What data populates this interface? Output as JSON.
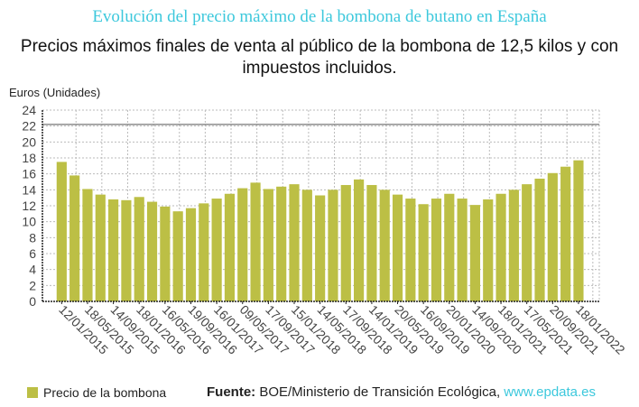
{
  "chart_data": {
    "type": "bar",
    "title": "Evolución del precio máximo de la bombona de butano en España",
    "subtitle": "Precios máximos finales de venta al público de la bombona de 12,5 kilos y con impuestos incluidos.",
    "ylabel": "Euros (Unidades)",
    "xlabel": "",
    "ylim": [
      0,
      24
    ],
    "yticks": [
      0,
      2,
      4,
      6,
      8,
      10,
      12,
      14,
      16,
      18,
      20,
      22,
      24
    ],
    "grid": true,
    "reference_line": 22.2,
    "x_tick_labels": [
      "12/01/2015",
      "18/05/2015",
      "14/09/2015",
      "18/01/2016",
      "16/05/2016",
      "19/09/2016",
      "16/01/2017",
      "09/05/2017",
      "17/09/2017",
      "15/01/2018",
      "14/05/2018",
      "17/09/2018",
      "14/01/2019",
      "20/05/2019",
      "16/09/2019",
      "20/01/2020",
      "14/09/2020",
      "18/01/2021",
      "17/05/2021",
      "20/09/2021",
      "18/01/2022"
    ],
    "series": [
      {
        "name": "Precio de la bombona",
        "color": "#bcbf45",
        "values": [
          17.5,
          15.8,
          14.1,
          13.4,
          12.8,
          12.7,
          13.1,
          12.5,
          11.9,
          11.3,
          11.7,
          12.3,
          12.9,
          13.5,
          14.2,
          14.9,
          14.1,
          14.4,
          14.7,
          14.0,
          13.3,
          14.0,
          14.6,
          15.3,
          14.6,
          14.0,
          13.4,
          12.9,
          12.2,
          12.9,
          13.5,
          12.9,
          12.1,
          12.8,
          13.5,
          14.0,
          14.7,
          15.4,
          16.1,
          16.9,
          17.7
        ]
      }
    ],
    "legend": "bottom-left"
  },
  "footer": {
    "source_label": "Fuente:",
    "source_text": " BOE/Ministerio de Transición Ecológica, ",
    "site": "www.epdata.es"
  }
}
